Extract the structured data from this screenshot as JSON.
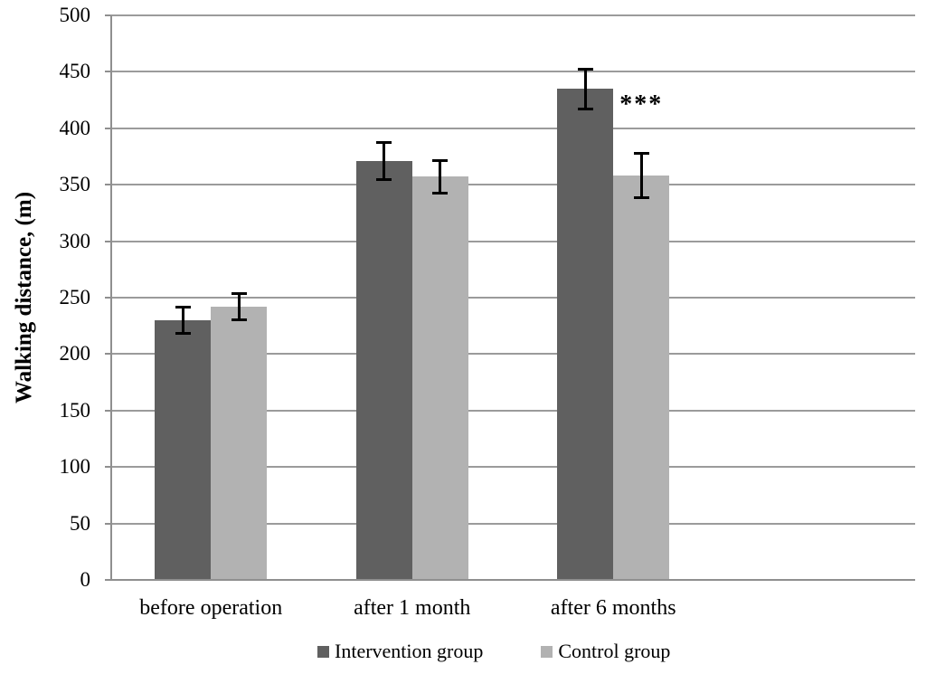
{
  "chart_data": {
    "type": "bar",
    "title": "",
    "ylabel": "Walking distance, (m)",
    "xlabel": "",
    "ylim": [
      0,
      500
    ],
    "ytick_step": 50,
    "ytick_labels": [
      "0",
      "50",
      "100",
      "150",
      "200",
      "250",
      "300",
      "350",
      "400",
      "450",
      "500"
    ],
    "grid": true,
    "legend_position": "bottom",
    "categories": [
      "before operation",
      "after 1 month",
      "after 6 months"
    ],
    "series": [
      {
        "name": "Intervention group",
        "color": "#606060",
        "values": [
          230,
          371,
          435
        ],
        "errors": [
          12,
          17,
          18
        ]
      },
      {
        "name": "Control group",
        "color": "#b2b2b2",
        "values": [
          242,
          357,
          358
        ],
        "errors": [
          12,
          15,
          20
        ]
      }
    ],
    "annotation": {
      "text": "***",
      "category_index": 2,
      "series_index": 1,
      "value": 420
    }
  },
  "colors": {
    "background": "#ffffff",
    "gridline": "#9b9b9b",
    "axis": "#8f8f8f",
    "error_bar": "#000000",
    "text": "#000000"
  }
}
